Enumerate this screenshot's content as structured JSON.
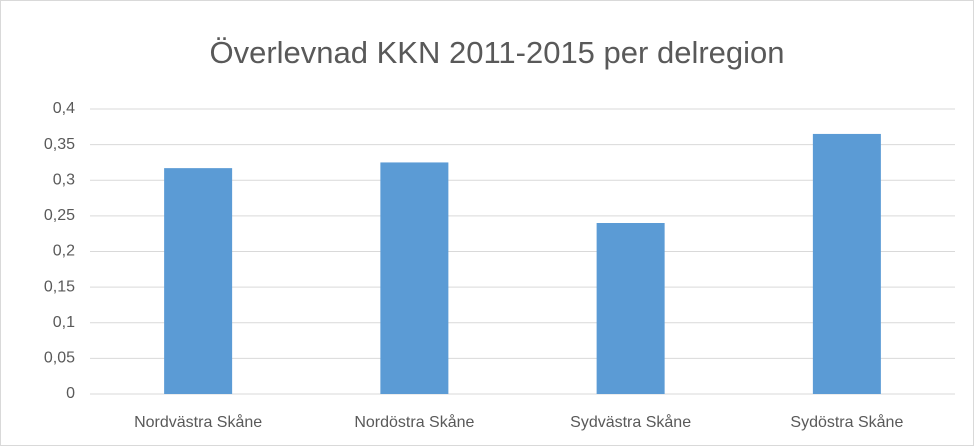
{
  "chart_data": {
    "type": "bar",
    "title": "Överlevnad KKN 2011-2015 per delregion",
    "categories": [
      "Nordvästra Skåne",
      "Nordöstra Skåne",
      "Sydvästra Skåne",
      "Sydöstra Skåne"
    ],
    "values": [
      0.317,
      0.325,
      0.24,
      0.365
    ],
    "color": "#5b9bd5",
    "ylim": [
      0,
      0.4
    ],
    "yticks": [
      0,
      {
        "value": 0.05,
        "label": "0,05"
      },
      {
        "value": 0.1,
        "label": "0,1"
      },
      {
        "value": 0.15,
        "label": "0,15"
      },
      {
        "value": 0.2,
        "label": "0,2"
      },
      {
        "value": 0.25,
        "label": "0,25"
      },
      {
        "value": 0.3,
        "label": "0,3"
      },
      {
        "value": 0.35,
        "label": "0,35"
      },
      {
        "value": 0.4,
        "label": "0,4"
      }
    ],
    "grid": true
  }
}
